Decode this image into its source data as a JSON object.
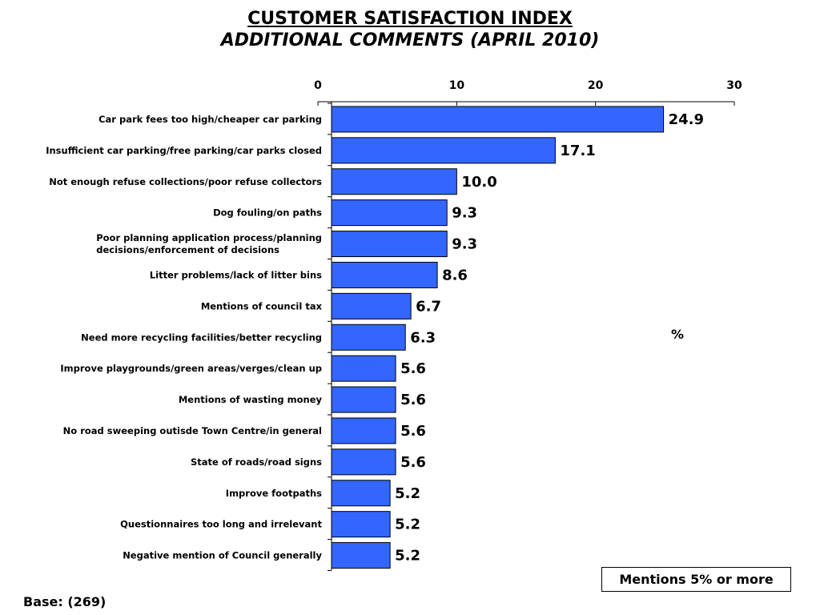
{
  "title": "CUSTOMER SATISFACTION INDEX",
  "subtitle": "ADDITIONAL COMMENTS (APRIL 2010)",
  "unit_label": "%",
  "note": "Mentions 5% or more",
  "base": "Base: (269)",
  "colors": {
    "bar": "#3366ff",
    "bar_stroke": "#000000",
    "axis": "#000000"
  },
  "chart_data": {
    "type": "bar",
    "orientation": "horizontal",
    "categories": [
      "Car park fees too high/cheaper car parking",
      "Insufficient car parking/free parking/car parks closed",
      "Not enough refuse collections/poor refuse collectors",
      "Dog fouling/on paths",
      "Poor planning application process/planning\ndecisions/enforcement of decisions",
      "Litter problems/lack of litter bins",
      "Mentions of council tax",
      "Need more recycling facilities/better recycling",
      "Improve playgrounds/green areas/verges/clean up",
      "Mentions of wasting money",
      "No road sweeping outisde Town Centre/in general",
      "State of roads/road signs",
      "Improve footpaths",
      "Questionnaires too long and irrelevant",
      "Negative mention of Council generally"
    ],
    "values": [
      24.9,
      17.1,
      10.0,
      9.3,
      9.3,
      8.6,
      6.7,
      6.3,
      5.6,
      5.6,
      5.6,
      5.6,
      5.2,
      5.2,
      5.2
    ],
    "value_labels": [
      "24.9",
      "17.1",
      "10.0",
      "9.3",
      "9.3",
      "8.6",
      "6.7",
      "6.3",
      "5.6",
      "5.6",
      "5.6",
      "5.6",
      "5.2",
      "5.2",
      "5.2"
    ],
    "xlim": [
      0,
      30
    ],
    "xticks": [
      0,
      10,
      20,
      30
    ],
    "xtick_labels": [
      "0",
      "10",
      "20",
      "30"
    ],
    "axis_position": "top",
    "grid": false,
    "legend": "none"
  }
}
